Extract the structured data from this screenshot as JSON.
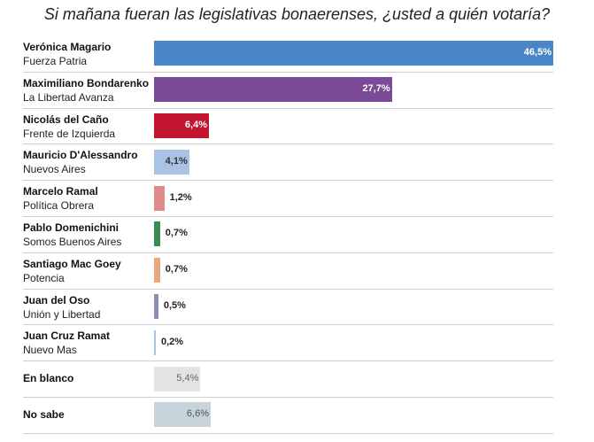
{
  "chart_data": {
    "type": "bar",
    "orientation": "horizontal",
    "title": "Si mañana fueran las legislativas bonaerenses, ¿usted a quién votaría?",
    "rows": [
      {
        "name": "Verónica Magario",
        "party": "Fuerza Patria",
        "value": 46.5,
        "label": "46,5%",
        "color": "#4a86c5",
        "label_pos": "inside",
        "label_color": "#ffffff"
      },
      {
        "name": "Maximiliano Bondarenko",
        "party": "La Libertad Avanza",
        "value": 27.7,
        "label": "27,7%",
        "color": "#7b4a96",
        "label_pos": "inside",
        "label_color": "#ffffff"
      },
      {
        "name": "Nicolás del Caño",
        "party": "Frente de Izquierda",
        "value": 6.4,
        "label": "6,4%",
        "color": "#c0142f",
        "label_pos": "inside",
        "label_color": "#ffffff"
      },
      {
        "name": "Mauricio D'Alessandro",
        "party": "Nuevos Aires",
        "value": 4.1,
        "label": "4,1%",
        "color": "#a9c2e6",
        "label_pos": "inside",
        "label_color": "#333333"
      },
      {
        "name": "Marcelo Ramal",
        "party": "Política Obrera",
        "value": 1.2,
        "label": "1,2%",
        "color": "#e08a8a",
        "label_pos": "outside",
        "label_color": "#222222"
      },
      {
        "name": "Pablo Domenichini",
        "party": "Somos Buenos Aires",
        "value": 0.7,
        "label": "0,7%",
        "color": "#3d8a55",
        "label_pos": "outside",
        "label_color": "#222222"
      },
      {
        "name": "Santiago Mac Goey",
        "party": "Potencia",
        "value": 0.7,
        "label": "0,7%",
        "color": "#eaa77a",
        "label_pos": "outside",
        "label_color": "#222222"
      },
      {
        "name": "Juan del Oso",
        "party": "Unión y Libertad",
        "value": 0.5,
        "label": "0,5%",
        "color": "#8a8fb5",
        "label_pos": "outside",
        "label_color": "#222222"
      },
      {
        "name": "Juan Cruz Ramat",
        "party": "Nuevo Mas",
        "value": 0.2,
        "label": "0,2%",
        "color": "#a9c2e6",
        "label_pos": "outside",
        "label_color": "#222222"
      },
      {
        "name": "En blanco",
        "party": "",
        "value": 5.4,
        "label": "5,4%",
        "color": "#e3e3e3",
        "label_pos": "inside",
        "label_color": "#666666"
      },
      {
        "name": "No sabe",
        "party": "",
        "value": 6.6,
        "label": "6,6%",
        "color": "#c7d3da",
        "label_pos": "inside",
        "label_color": "#555555"
      }
    ],
    "xlim": [
      0,
      46.5
    ],
    "grid": false,
    "legend": "none"
  }
}
